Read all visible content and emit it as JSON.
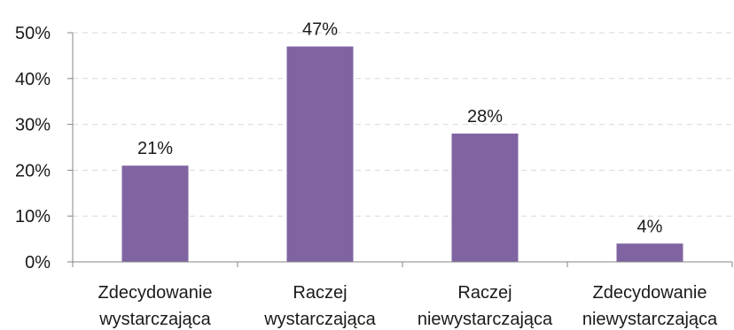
{
  "chart_data": {
    "type": "bar",
    "title": "",
    "xlabel": "",
    "ylabel": "",
    "categories": [
      [
        "Zdecydowanie",
        "wystarczająca"
      ],
      [
        "Raczej",
        "wystarczająca"
      ],
      [
        "Raczej",
        "niewystarczająca"
      ],
      [
        "Zdecydowanie",
        "niewystarczająca"
      ]
    ],
    "values": [
      21,
      47,
      28,
      4
    ],
    "data_labels": [
      "21%",
      "47%",
      "28%",
      "4%"
    ],
    "ylim": [
      0,
      50
    ],
    "yticks": [
      0,
      10,
      20,
      30,
      40,
      50
    ],
    "ytick_labels": [
      "0%",
      "10%",
      "20%",
      "30%",
      "40%",
      "50%"
    ],
    "grid": true,
    "legend": "none",
    "colors": {
      "bar": "#8064a2",
      "grid": "#d9d9d9",
      "axis": "#868686"
    }
  }
}
